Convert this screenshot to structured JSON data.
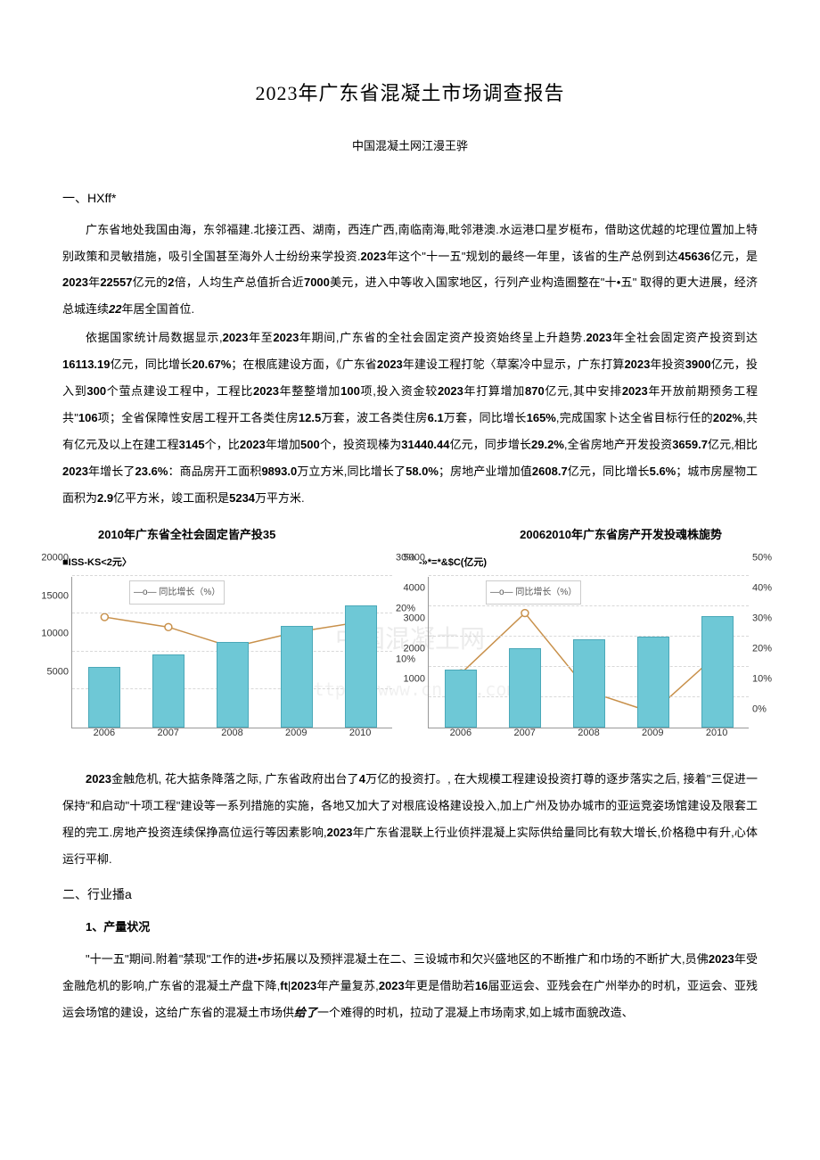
{
  "title": "2023年广东省混凝土市场调查报告",
  "subtitle": "中国混凝土网江漫王骅",
  "section1": {
    "head": "一、HXff*",
    "p1_a": "广东省地处我国由海，东邻福建.北接江西、湖南，西连广西,南临南海,毗邻港澳.水运港口星岁梃布，借助这优越的坨理位置加上特别政策和灵敏措施，吸引全国甚至海外人士纷纷来学投资.",
    "p1_b": "2023",
    "p1_c": "年这个\"十一五\"规划的最终一年里，该省的生产总例到达",
    "p1_d": "45636",
    "p1_e": "亿元，是",
    "p1_f": "2023",
    "p1_g": "年",
    "p1_h": "22557",
    "p1_i": "亿元的",
    "p1_j": "2",
    "p1_k": "倍，人均生产总值折合近",
    "p1_l": "7000",
    "p1_m": "美元，进入中等收入国家地区，行列产业构造圈整在\"十•五\" 取得的更大进展，经济总城连续",
    "p1_n": "22",
    "p1_o": "年居全国首位.",
    "p2_a": "依据国家统计局数据显示,",
    "p2_b": "2023",
    "p2_c": "年至",
    "p2_d": "2023",
    "p2_e": "年期间,广东省的全社会固定资产投资始终呈上升趋势.",
    "p2_f": "2023",
    "p2_g": "年全社会固定资产投资到达",
    "p2_h": "16113.19",
    "p2_i": "亿元，同比增长",
    "p2_j": "20.67%",
    "p2_k": "；在根底建设方面，《广东省",
    "p2_l": "2023",
    "p2_m": "年建设工程打鸵〈草案冷中显示，广东打算",
    "p2_n": "2023",
    "p2_o": "年投资",
    "p2_p": "3900",
    "p2_q": "亿元，投入到",
    "p2_r": "300",
    "p2_s": "个萤点建设工程中，工程比",
    "p2_t": "2023",
    "p2_u": "年整整增加",
    "p2_v": "100",
    "p2_w": "项,投入资金较",
    "p2_x": "2023",
    "p2_y": "年打算增加",
    "p2_z": "870",
    "p2_aa": "亿元,其中安排",
    "p2_ab": "2023",
    "p2_ac": "年开放前期预务工程共\"",
    "p2_ad": "106",
    "p2_ae": "项；全省保障性安居工程开工各类住房",
    "p2_af": "12.5",
    "p2_ag": "万套，波工各类住房",
    "p2_ah": "6.1",
    "p2_ai": "万套，同比增长",
    "p2_aj": "165%",
    "p2_ak": ",完成国家卜达全省目标行任的",
    "p2_al": "202%",
    "p2_am": ",共有亿元及以上在建工程",
    "p2_an": "3145",
    "p2_ao": "个，比",
    "p2_ap": "2023",
    "p2_aq": "年增加",
    "p2_ar": "500",
    "p2_as": "个，投资现榛为",
    "p2_at": "31440.44",
    "p2_au": "亿元，同步增长",
    "p2_av": "29.2%",
    "p2_aw": ",全省房地产开发投资",
    "p2_ax": "3659.7",
    "p2_ay": "亿元,相比",
    "p2_az": "2023",
    "p2_ba": "年增长了",
    "p2_bb": "23.6%",
    "p2_bc": "：商品房开工面积",
    "p2_bd": "9893.0",
    "p2_be": "万立方米,同比增长了",
    "p2_bf": "58.0%",
    "p2_bg": "；房地产业增加值",
    "p2_bh": "2608.7",
    "p2_bi": "亿元，同比增长",
    "p2_bj": "5.6%",
    "p2_bk": "；城市房屋物工面积为",
    "p2_bl": "2.9",
    "p2_bm": "亿平方米，竣工面积是",
    "p2_bn": "5234",
    "p2_bo": "万平方米."
  },
  "chart1": {
    "title": "2010年广东省全社会固定皆产投35",
    "legend_left": "■ISS-KS<2元〉",
    "legend_inline": "—o— 同比增长（%）",
    "type": "bar+line",
    "x": [
      "2006",
      "2007",
      "2008",
      "2009",
      "2010"
    ],
    "bars": [
      8000,
      9600,
      11200,
      13400,
      16100
    ],
    "line": [
      22,
      20,
      16,
      19,
      21
    ],
    "y_left": {
      "min": 0,
      "max": 20000,
      "ticks": [
        5000,
        10000,
        15000,
        20000
      ]
    },
    "y_right": {
      "min": 0,
      "max": 30,
      "ticks": [
        "10%",
        "20%",
        "30%"
      ],
      "extra": "10%"
    },
    "bar_color": "#6ec8d6",
    "line_color": "#c8904a",
    "marker_color": "#ffffff",
    "marker_border": "#c8904a",
    "grid_color": "#d8d8d8",
    "bg": "#ffffff"
  },
  "chart2": {
    "title": "20062010年广东省房产开发投魂株旎势",
    "legend_left": "-»*=*&$C(亿元)",
    "legend_inline": "—o— 同比增长（%）",
    "type": "bar+line",
    "x": [
      "2006",
      "2007",
      "2008",
      "2009",
      "2010"
    ],
    "bars": [
      1900,
      2600,
      2900,
      3000,
      3660
    ],
    "line": [
      18,
      38,
      12,
      5,
      24
    ],
    "y_left": {
      "min": 0,
      "max": 5000,
      "ticks": [
        1000,
        2000,
        3000,
        4000,
        5000
      ]
    },
    "y_right": {
      "min": 0,
      "max": 50,
      "ticks": [
        "0%",
        "10%",
        "20%",
        "30%",
        "40%",
        "50%"
      ]
    },
    "bar_color": "#6ec8d6",
    "line_color": "#c8904a",
    "marker_color": "#ffffff",
    "marker_border": "#c8904a",
    "grid_color": "#d8d8d8",
    "bg": "#ffffff"
  },
  "watermark": {
    "cn": "中国混凝土网",
    "url": "http://www.cnrmc.com"
  },
  "section1b": {
    "p3_a": "2023",
    "p3_b": "金触危机, 花大掂条降落之际, 广东省政府出台了",
    "p3_c": "4",
    "p3_d": "万亿的投资打。, 在大规模工程建设投资打尊的逐步落实之后, 接着\"三促进一保持\"和启动\"十项工程\"建设等一系列措施的实施，各地又加大了对根底设格建设投入,加上广州及协办城市的亚运竞姿场馆建设及限套工程的完工.房地产投资连续保挣高位运行等因素影响,",
    "p3_e": "2023",
    "p3_f": "年广东省混联上行业侦拌混凝上实际供给量同比有软大增长,价格稳中有升,心体运行平柳."
  },
  "section2": {
    "head": "二、行业播a",
    "sub1": "1、产量状况",
    "p1_a": "\"十一五\"期间.附着\"禁现\"工作的进•步拓展以及预拌混凝土在二、三设城市和欠兴盛地区的不断推广和巾场的不断扩大,员佛",
    "p1_b": "2023",
    "p1_c": "年受金融危机的影响,广东省的混凝土产盘下降,",
    "p1_d": "ft",
    "p1_e": "|",
    "p1_f": "2023",
    "p1_g": "年产量复苏,",
    "p1_h": "2023",
    "p1_i": "年更是借助若",
    "p1_j": "16",
    "p1_k": "届亚运会、亚残会在广州举办的时机，亚运会、亚残运会场馆的建设，这给广东省的混凝土市场供",
    "p1_l": "给了",
    "p1_m": "一个难得的时机，拉动了混凝上市场南求,如上城市面貌改造、"
  }
}
